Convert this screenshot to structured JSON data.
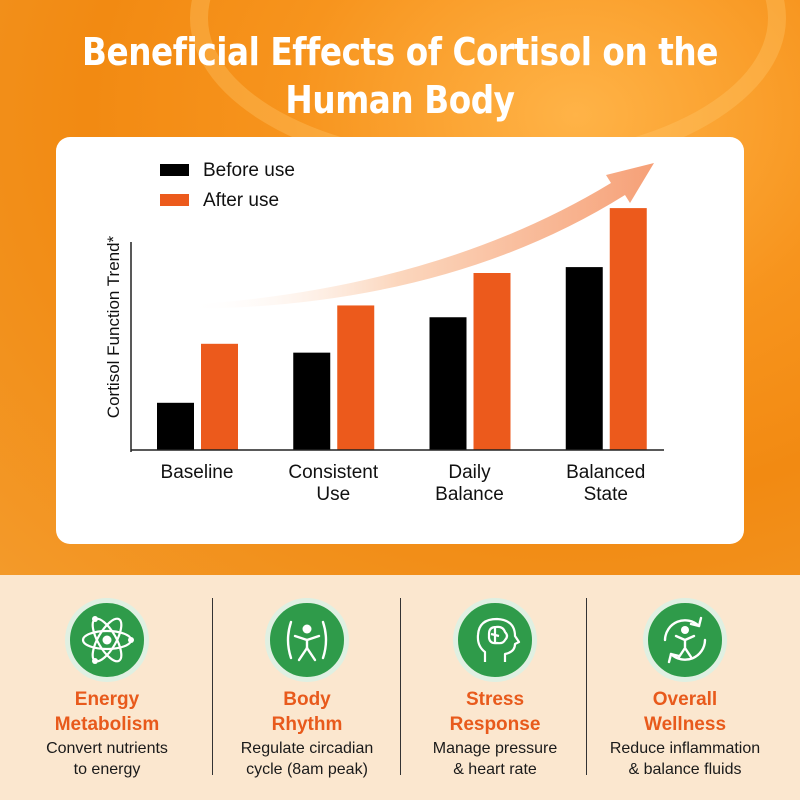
{
  "title_line1": "Beneficial Effects of Cortisol on the",
  "title_line2": "Human Body",
  "colors": {
    "before": "#000000",
    "after": "#ec5a1c",
    "accent_orange": "#e85a1c",
    "icon_green": "#2f9b4a",
    "hero_orange": "#f7941d"
  },
  "chart_data": {
    "type": "bar",
    "ylabel": "Cortisol Function Trend*",
    "xlabel": "",
    "categories": [
      [
        "Baseline"
      ],
      [
        "Consistent",
        "Use"
      ],
      [
        "Daily",
        "Balance"
      ],
      [
        "Balanced",
        "State"
      ]
    ],
    "series": [
      {
        "name": "Before use",
        "values": [
          16,
          33,
          45,
          62
        ]
      },
      {
        "name": "After use",
        "values": [
          36,
          49,
          60,
          82
        ]
      }
    ],
    "ylim": [
      0,
      100
    ],
    "legend_position": "top-left",
    "grid": false,
    "trend_arrow": true
  },
  "features": [
    {
      "icon": "atom-icon",
      "title": [
        "Energy",
        "Metabolism"
      ],
      "desc": [
        "Convert nutrients",
        "to energy"
      ]
    },
    {
      "icon": "body-rhythm-icon",
      "title": [
        "Body",
        "Rhythm"
      ],
      "desc": [
        "Regulate circadian",
        "cycle (8am peak)"
      ]
    },
    {
      "icon": "brain-head-icon",
      "title": [
        "Stress",
        "Response"
      ],
      "desc": [
        "Manage pressure",
        "& heart rate"
      ]
    },
    {
      "icon": "wellness-cycle-icon",
      "title": [
        "Overall",
        "Wellness"
      ],
      "desc": [
        "Reduce inflammation",
        "& balance fluids"
      ]
    }
  ]
}
